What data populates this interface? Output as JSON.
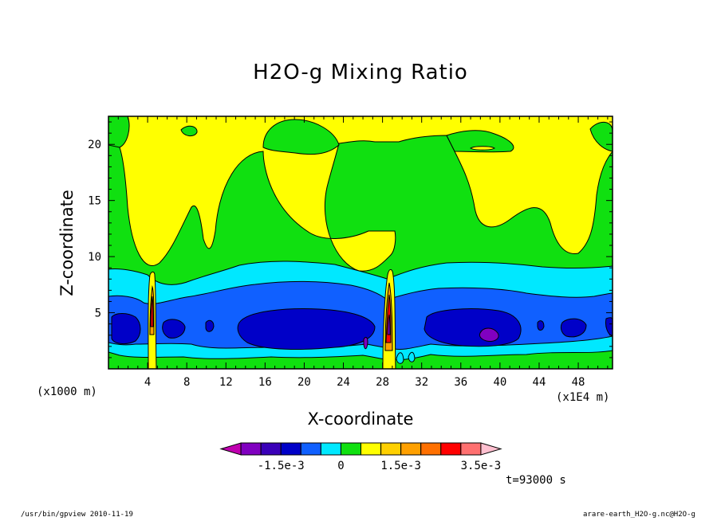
{
  "chart_data": {
    "type": "heatmap",
    "title": "H2O-g Mixing Ratio",
    "xlabel": "X-coordinate",
    "ylabel": "Z-coordinate",
    "xunit_left": "(x1000 m)",
    "xunit_right": "(x1E4 m)",
    "xlim": [
      0,
      51.5
    ],
    "ylim": [
      0,
      22.5
    ],
    "x_ticks": [
      4,
      8,
      12,
      16,
      20,
      24,
      28,
      32,
      36,
      40,
      44,
      48
    ],
    "y_ticks": [
      5,
      10,
      15,
      20
    ],
    "colorbar": {
      "tick_labels": [
        "-1.5e-3",
        "0",
        "1.5e-3",
        "3.5e-3"
      ],
      "tick_positions": [
        -0.0015,
        0,
        0.0015,
        0.0035
      ],
      "levels": [
        -0.003,
        -0.0025,
        -0.002,
        -0.0015,
        -0.001,
        -0.0005,
        0,
        0.0005,
        0.001,
        0.0015,
        0.002,
        0.0025,
        0.003,
        0.0035,
        0.004
      ],
      "colors": [
        "#c000b0",
        "#8000c0",
        "#3a00b8",
        "#0000c8",
        "#1060ff",
        "#00e8ff",
        "#10e010",
        "#ffff00",
        "#ffd000",
        "#ffa000",
        "#ff7000",
        "#ff0000",
        "#ff7070",
        "#ffc0d0"
      ]
    },
    "fields": {
      "top_region_min_z": 14.5,
      "main_region": {
        "cyan_band_z": [
          1.5,
          9.3
        ],
        "blue_band_z": [
          2.0,
          6.5
        ],
        "navy_core_z": [
          2.5,
          5.0
        ],
        "purple_spot": {
          "x": 38.5,
          "z": 3.0
        },
        "updrafts_x": [
          4.4,
          28.3
        ]
      }
    }
  },
  "annotation": {
    "time": "t=93000 s",
    "footer_left": "/usr/bin/gpview   2010-11-19",
    "footer_right": "arare-earth_H2O-g.nc@H2O-g"
  }
}
